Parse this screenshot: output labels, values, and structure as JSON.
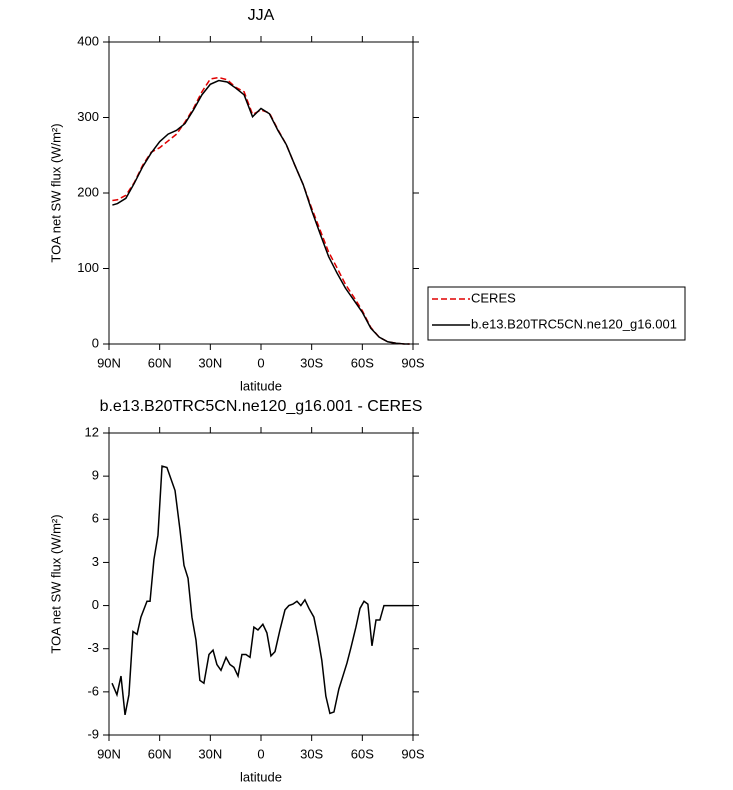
{
  "chart_data": [
    {
      "type": "line",
      "title": "JJA",
      "xlabel": "latitude",
      "ylabel": "TOA net SW flux (W/m²)",
      "xlim": [
        90,
        -90
      ],
      "xticks": [
        {
          "value": 90,
          "label": "90N"
        },
        {
          "value": 60,
          "label": "60N"
        },
        {
          "value": 30,
          "label": "30N"
        },
        0,
        {
          "value": -30,
          "label": "30S"
        },
        {
          "value": -60,
          "label": "60S"
        },
        {
          "value": -90,
          "label": "90S"
        }
      ],
      "ylim": [
        0,
        400
      ],
      "yticks": [
        0,
        100,
        200,
        300,
        400
      ],
      "legend": "right",
      "x": [
        88,
        85,
        80,
        75,
        70,
        65,
        60,
        55,
        50,
        45,
        40,
        35,
        30,
        25,
        20,
        15,
        10,
        5,
        0,
        -5,
        -10,
        -15,
        -20,
        -25,
        -30,
        -35,
        -40,
        -45,
        -50,
        -55,
        -60,
        -65,
        -70,
        -75,
        -80,
        -85,
        -88
      ],
      "series": [
        {
          "name": "CERES",
          "color": "#e00000",
          "linestyle": "dashed",
          "values": [
            190,
            191,
            197,
            214,
            237,
            254,
            260,
            269,
            278,
            294,
            312,
            334,
            351,
            353,
            350,
            340,
            334,
            304,
            310,
            306,
            284,
            264,
            237,
            211,
            180,
            151,
            122,
            101,
            79,
            62,
            44,
            22,
            9,
            3,
            1,
            0,
            0
          ]
        },
        {
          "name": "b.e13.B20TRC5CN.ne120_g16.001",
          "color": "#000000",
          "linestyle": "solid",
          "values": [
            184,
            186,
            193,
            213,
            235,
            253,
            268,
            278,
            283,
            292,
            310,
            330,
            344,
            349,
            347,
            339,
            330,
            301,
            312,
            305,
            283,
            264,
            237,
            211,
            177,
            146,
            116,
            94,
            74,
            58,
            42,
            21,
            9,
            3,
            1,
            0,
            0
          ]
        }
      ]
    },
    {
      "type": "line",
      "title": "b.e13.B20TRC5CN.ne120_g16.001 - CERES",
      "xlabel": "latitude",
      "ylabel": "TOA net SW flux (W/m²)",
      "xlim": [
        90,
        -90
      ],
      "xticks": [
        {
          "value": 90,
          "label": "90N"
        },
        {
          "value": 60,
          "label": "60N"
        },
        {
          "value": 30,
          "label": "30N"
        },
        0,
        {
          "value": -30,
          "label": "30S"
        },
        {
          "value": -60,
          "label": "60S"
        },
        {
          "value": -90,
          "label": "90S"
        }
      ],
      "ylim": [
        -9,
        12
      ],
      "yticks": [
        -9,
        -6,
        -3,
        0,
        3,
        6,
        9,
        12
      ],
      "x": [
        88.2,
        85.3,
        82.9,
        80.5,
        78.2,
        75.8,
        73.4,
        71.1,
        67.5,
        65.7,
        63.4,
        61,
        58.6,
        55.7,
        50.9,
        48,
        45.6,
        43.2,
        40.9,
        38.5,
        36.2,
        33.8,
        30.8,
        28.4,
        26.1,
        23.7,
        20.7,
        18.4,
        16,
        13.6,
        11.3,
        8.9,
        6.5,
        4.2,
        1.8,
        -1.1,
        -3.5,
        -5.9,
        -8.3,
        -11.2,
        -14.2,
        -16.5,
        -18.9,
        -21.3,
        -23.6,
        -26,
        -28.4,
        -31.3,
        -33.7,
        -36,
        -38.4,
        -40.8,
        -43.2,
        -46.1,
        -48.5,
        -50.9,
        -53.3,
        -56.2,
        -58.6,
        -61,
        -63.3,
        -65.7,
        -68.1,
        -70.4,
        -72.8,
        -75.2,
        -79.9,
        -90
      ],
      "series": [
        {
          "name": "b.e13.B20TRC5CN.ne120_g16.001 - CERES",
          "color": "#000000",
          "linestyle": "solid",
          "values": [
            -5.4,
            -6.2,
            -4.9,
            -7.6,
            -6.2,
            -1.8,
            -2.0,
            -0.8,
            0.3,
            0.3,
            3.2,
            4.9,
            9.7,
            9.6,
            8.0,
            5.3,
            2.8,
            1.9,
            -0.8,
            -2.4,
            -5.2,
            -5.4,
            -3.4,
            -3.1,
            -4.1,
            -4.5,
            -3.6,
            -4.1,
            -4.3,
            -4.9,
            -3.4,
            -3.4,
            -3.6,
            -1.5,
            -1.7,
            -1.3,
            -1.9,
            -3.5,
            -3.2,
            -1.7,
            -0.3,
            0.0,
            0.1,
            0.3,
            0.0,
            0.4,
            -0.2,
            -0.8,
            -2.2,
            -3.8,
            -6.3,
            -7.5,
            -7.4,
            -5.8,
            -4.9,
            -4.0,
            -2.9,
            -1.5,
            -0.2,
            0.3,
            0.1,
            -2.8,
            -1.0,
            -1.0,
            0.0,
            0.0,
            0,
            0
          ]
        }
      ]
    }
  ]
}
